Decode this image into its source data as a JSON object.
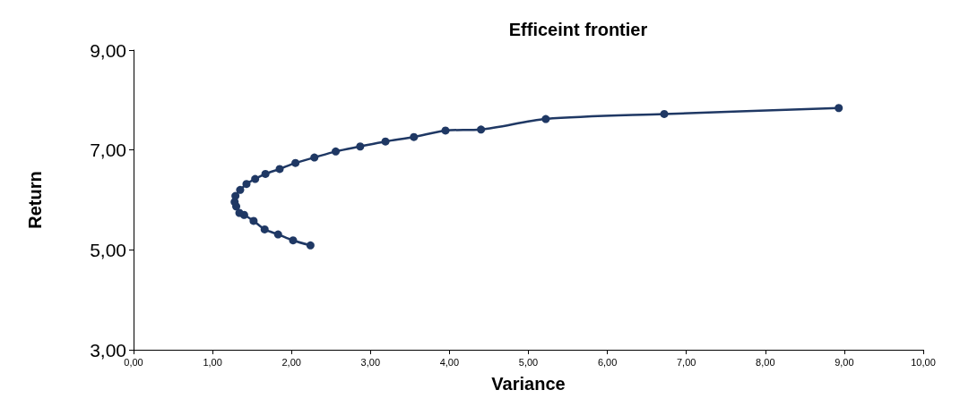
{
  "chart_data": {
    "type": "line",
    "title": "Efficeint frontier",
    "xlabel": "Variance",
    "ylabel": "Return",
    "marker": "circle",
    "line_style": "solid",
    "xlim": [
      0,
      10
    ],
    "xticks": [
      {
        "value": 0,
        "label": "0,00"
      },
      {
        "value": 1,
        "label": "1,00"
      },
      {
        "value": 2,
        "label": "2,00"
      },
      {
        "value": 3,
        "label": "3,00"
      },
      {
        "value": 4,
        "label": "4,00"
      },
      {
        "value": 5,
        "label": "5,00"
      },
      {
        "value": 6,
        "label": "6,00"
      },
      {
        "value": 7,
        "label": "7,00"
      },
      {
        "value": 8,
        "label": "8,00"
      },
      {
        "value": 9,
        "label": "9,00"
      },
      {
        "value": 10,
        "label": "10,00"
      }
    ],
    "ylim": [
      3,
      9
    ],
    "yticks": [
      {
        "value": 3,
        "label": "3,00"
      },
      {
        "value": 5,
        "label": "5,00"
      },
      {
        "value": 7,
        "label": "7,00"
      },
      {
        "value": 9,
        "label": "9,00"
      }
    ],
    "series": [
      {
        "color": "#1f3864",
        "x": [
          2.24,
          2.02,
          1.83,
          1.66,
          1.52,
          1.4,
          1.34,
          1.3,
          1.28,
          1.29,
          1.35,
          1.43,
          1.54,
          1.67,
          1.85,
          2.05,
          2.29,
          2.56,
          2.87,
          3.19,
          3.55,
          3.95,
          4.4,
          5.22,
          6.72,
          8.93
        ],
        "values": [
          5.09,
          5.19,
          5.31,
          5.41,
          5.58,
          5.7,
          5.74,
          5.87,
          5.96,
          6.08,
          6.2,
          6.32,
          6.42,
          6.52,
          6.62,
          6.74,
          6.85,
          6.97,
          7.07,
          7.17,
          7.26,
          7.39,
          7.41,
          7.62,
          7.72,
          7.84
        ]
      }
    ]
  }
}
